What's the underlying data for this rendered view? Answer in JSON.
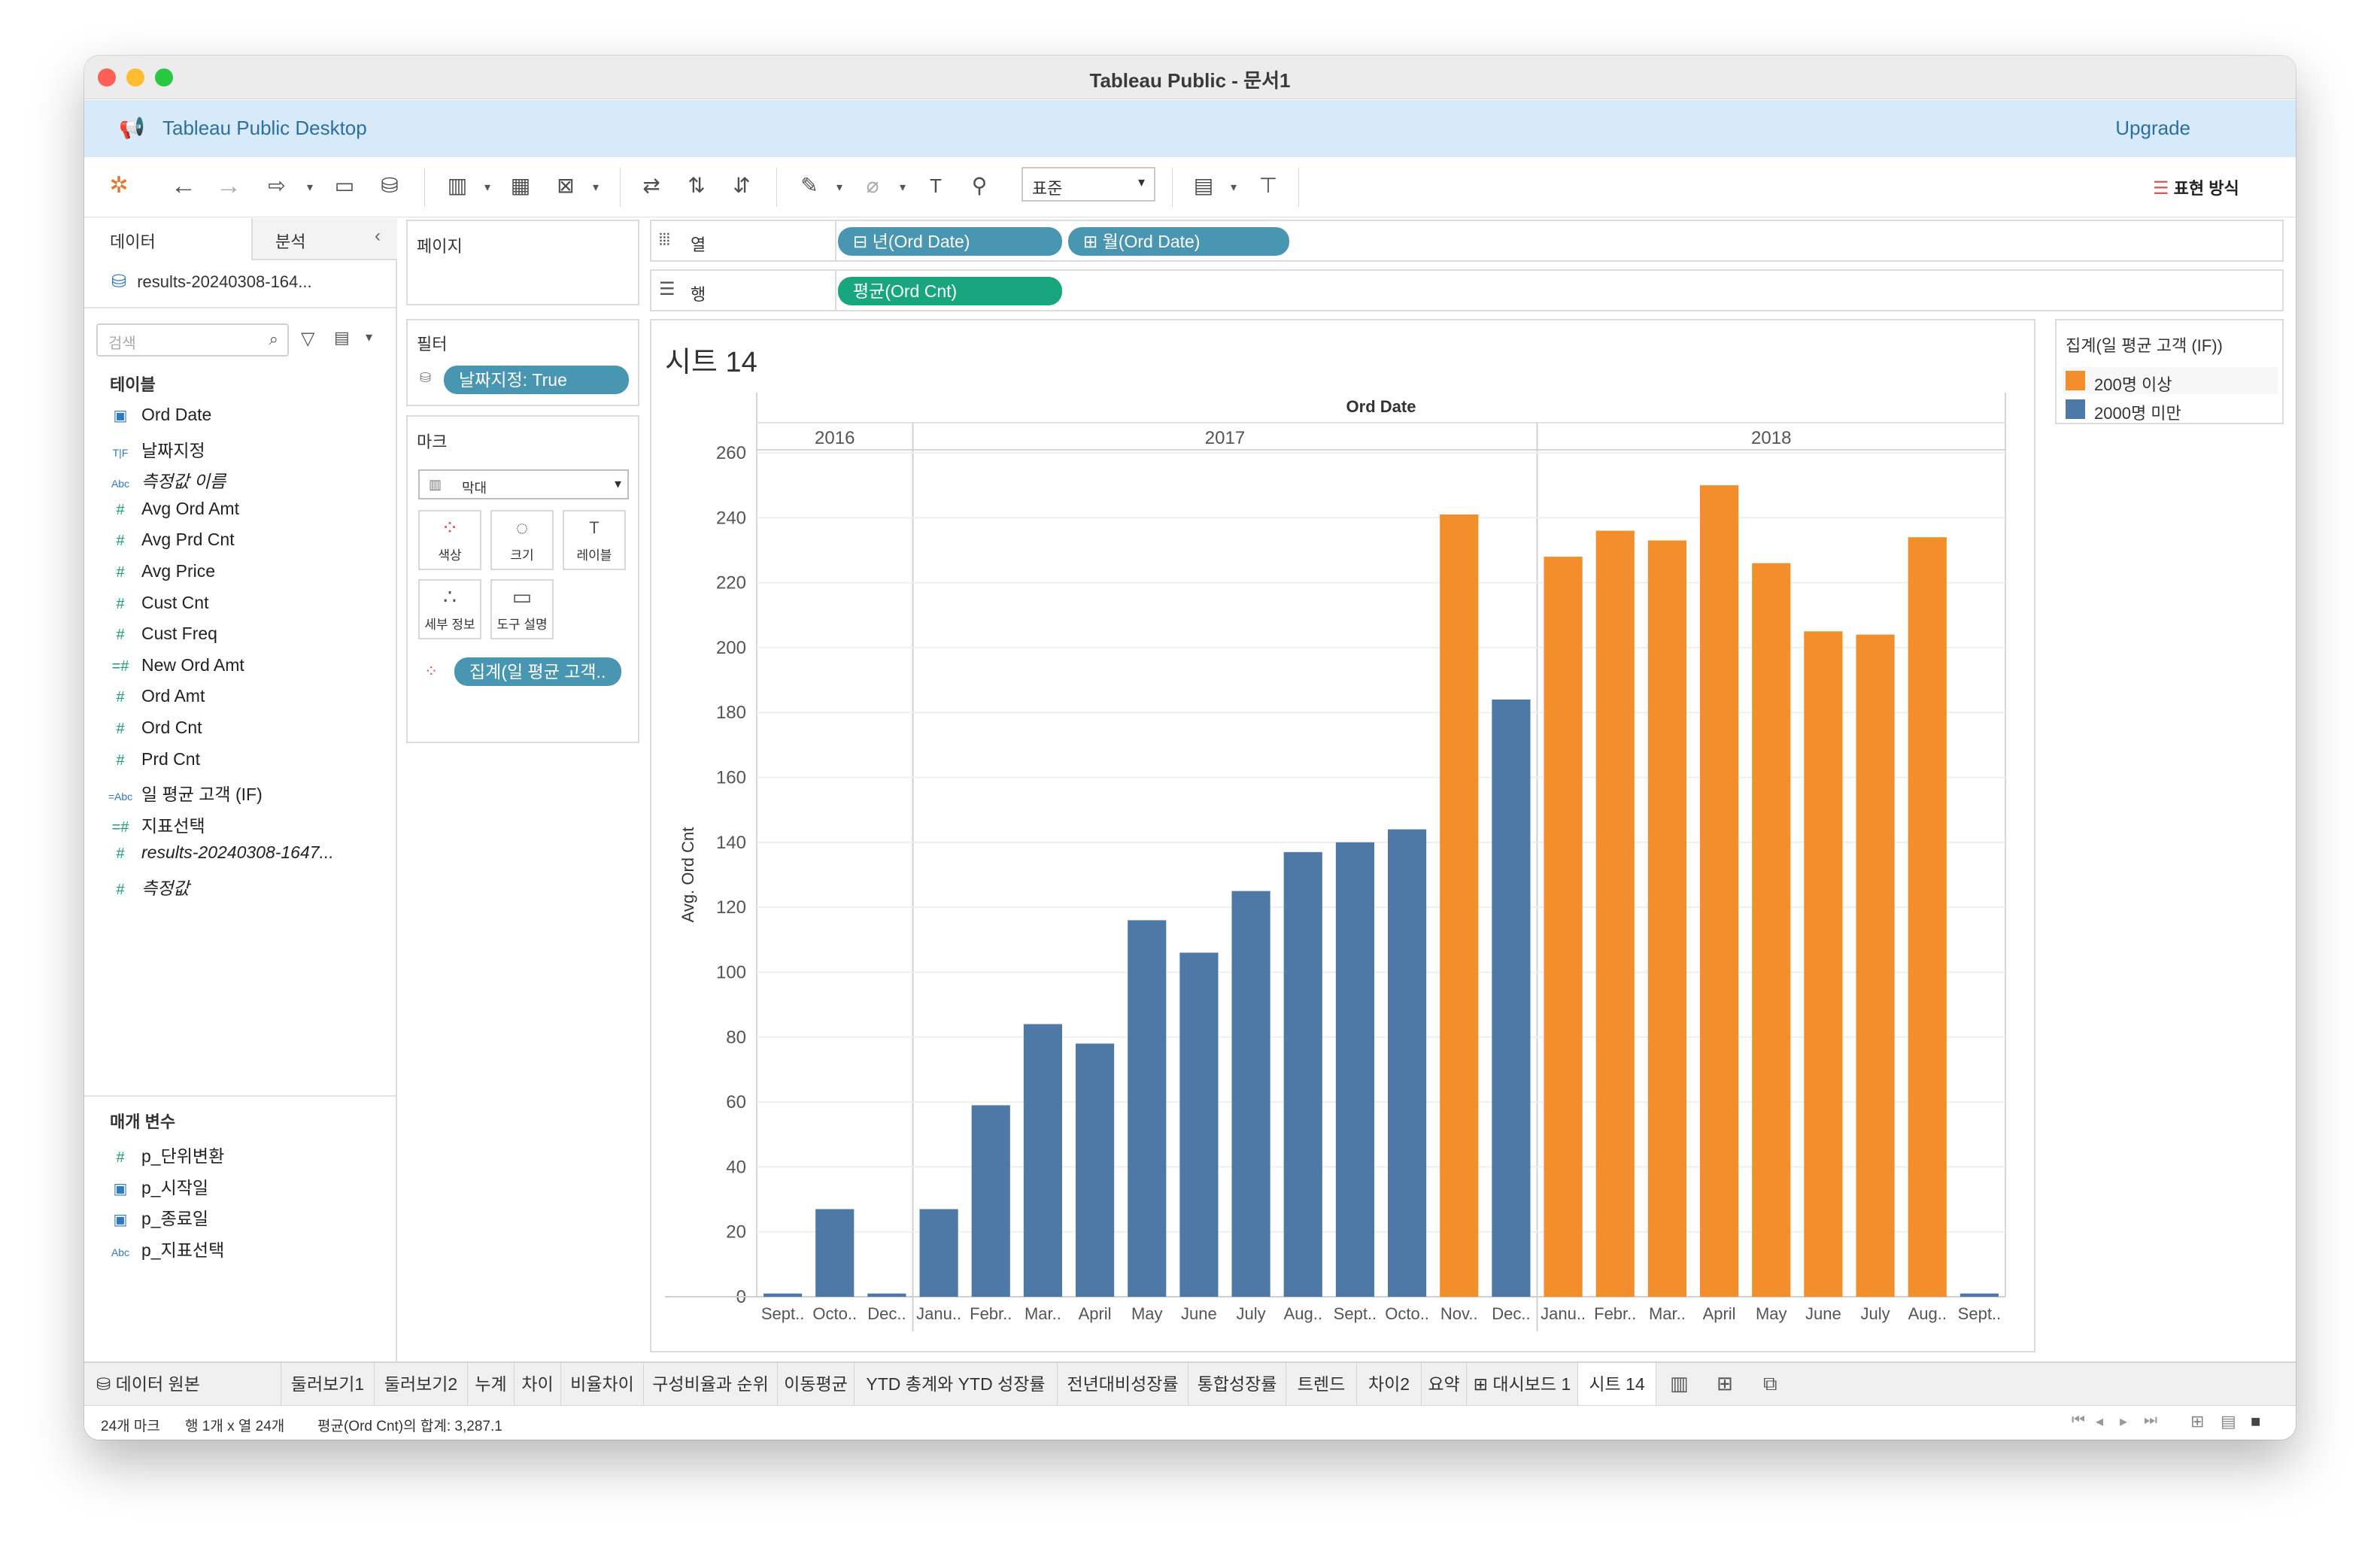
{
  "window": {
    "title": "Tableau Public - 문서1"
  },
  "banner": {
    "text": "Tableau Public Desktop",
    "upgrade": "Upgrade"
  },
  "toolbar": {
    "format_select": "표준",
    "show_me": "표현 방식"
  },
  "left_pane": {
    "tabs": [
      "데이터",
      "분석"
    ],
    "datasource": "results-20240308-164...",
    "search_placeholder": "검색",
    "tables_header": "테이블",
    "fields": [
      {
        "icon": "date",
        "label": "Ord Date"
      },
      {
        "icon": "bool",
        "label": "날짜지정"
      },
      {
        "icon": "abc",
        "label": "측정값 이름"
      },
      {
        "icon": "num",
        "label": "Avg Ord Amt"
      },
      {
        "icon": "num",
        "label": "Avg Prd Cnt"
      },
      {
        "icon": "num",
        "label": "Avg Price"
      },
      {
        "icon": "num",
        "label": "Cust Cnt"
      },
      {
        "icon": "num",
        "label": "Cust Freq"
      },
      {
        "icon": "calc-num",
        "label": "New Ord Amt"
      },
      {
        "icon": "num",
        "label": "Ord Amt"
      },
      {
        "icon": "num",
        "label": "Ord Cnt"
      },
      {
        "icon": "num",
        "label": "Prd Cnt"
      },
      {
        "icon": "calc-abc",
        "label": "일 평균 고객 (IF)"
      },
      {
        "icon": "calc-num",
        "label": "지표선택"
      },
      {
        "icon": "num",
        "label": "results-20240308-1647..."
      },
      {
        "icon": "num",
        "label": "측정값"
      }
    ],
    "params_header": "매개 변수",
    "params": [
      {
        "icon": "num",
        "label": "p_단위변환"
      },
      {
        "icon": "date",
        "label": "p_시작일"
      },
      {
        "icon": "date",
        "label": "p_종료일"
      },
      {
        "icon": "abc",
        "label": "p_지표선택"
      }
    ]
  },
  "shelves": {
    "pages": "페이지",
    "filters": "필터",
    "filter_pill": "날짜지정: True",
    "marks": "마크",
    "mark_type": "막대",
    "mark_buttons": [
      "색상",
      "크기",
      "레이블",
      "세부 정보",
      "도구 설명"
    ],
    "color_pill": "집계(일 평균 고객..",
    "columns_label": "열",
    "rows_label": "행",
    "columns": [
      "년(Ord Date)",
      "월(Ord Date)"
    ],
    "rows": [
      "평균(Ord Cnt)"
    ]
  },
  "sheet_title": "시트 14",
  "legend": {
    "title": "집계(일 평균 고객 (IF))",
    "items": [
      {
        "label": "200명 이상",
        "color": "#f28e2b"
      },
      {
        "label": "2000명 미만",
        "color": "#4e79a7"
      }
    ]
  },
  "chart_data": {
    "type": "bar",
    "title": "시트 14",
    "header": "Ord Date",
    "years": [
      {
        "label": "2016",
        "count": 3
      },
      {
        "label": "2017",
        "count": 12
      },
      {
        "label": "2018",
        "count": 9
      }
    ],
    "categories": [
      "Sept..",
      "Octo..",
      "Dec..",
      "Janu..",
      "Febr..",
      "Mar..",
      "April",
      "May",
      "June",
      "July",
      "Aug..",
      "Sept..",
      "Octo..",
      "Nov..",
      "Dec..",
      "Janu..",
      "Febr..",
      "Mar..",
      "April",
      "May",
      "June",
      "July",
      "Aug..",
      "Sept.."
    ],
    "values": [
      1,
      27,
      1,
      27,
      59,
      84,
      78,
      116,
      106,
      125,
      137,
      140,
      144,
      241,
      184,
      228,
      236,
      233,
      250,
      226,
      205,
      204,
      234,
      1
    ],
    "groups": [
      "lt",
      "lt",
      "lt",
      "lt",
      "lt",
      "lt",
      "lt",
      "lt",
      "lt",
      "lt",
      "lt",
      "lt",
      "lt",
      "ge",
      "lt",
      "ge",
      "ge",
      "ge",
      "ge",
      "ge",
      "ge",
      "ge",
      "ge",
      "lt"
    ],
    "colors": {
      "ge": "#f28e2b",
      "lt": "#4e79a7"
    },
    "ylabel": "Avg. Ord Cnt",
    "ylim": [
      0,
      260
    ],
    "yticks": [
      0,
      20,
      40,
      60,
      80,
      100,
      120,
      140,
      160,
      180,
      200,
      220,
      240,
      260
    ]
  },
  "sheet_tabs": [
    "데이터 원본",
    "둘러보기1",
    "둘러보기2",
    "누계",
    "차이",
    "비율차이",
    "구성비율과 순위",
    "이동평균",
    "YTD 총계와 YTD 성장률",
    "전년대비성장률",
    "통합성장률",
    "트렌드",
    "차이2",
    "요약",
    "대시보드 1",
    "시트 14"
  ],
  "status": {
    "marks": "24개 마크",
    "rows_cols": "행 1개 x 열 24개",
    "sum": "평균(Ord Cnt)의 합계: 3,287.1"
  }
}
